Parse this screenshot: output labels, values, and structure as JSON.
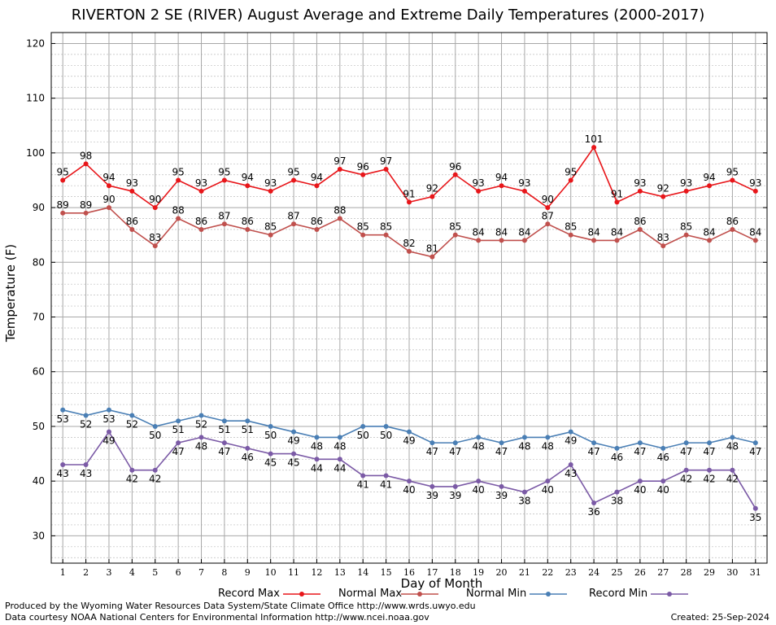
{
  "chart_data": {
    "type": "line",
    "title": "RIVERTON 2 SE (RIVER) August Average and Extreme Daily Temperatures (2000-2017)",
    "xlabel": "Day of Month",
    "ylabel": "Temperature (F)",
    "ylim": [
      25,
      122
    ],
    "yticks": [
      30,
      40,
      50,
      60,
      70,
      80,
      90,
      100,
      110,
      120
    ],
    "x": [
      1,
      2,
      3,
      4,
      5,
      6,
      7,
      8,
      9,
      10,
      11,
      12,
      13,
      14,
      15,
      16,
      17,
      18,
      19,
      20,
      21,
      22,
      23,
      24,
      25,
      26,
      27,
      28,
      29,
      30,
      31
    ],
    "grid": true,
    "legend_position": "bottom",
    "series": [
      {
        "name": "Record Max",
        "color": "#e8161a",
        "label_pos": "above",
        "values": [
          95,
          98,
          94,
          93,
          90,
          95,
          93,
          95,
          94,
          93,
          95,
          94,
          97,
          96,
          97,
          91,
          92,
          96,
          93,
          94,
          93,
          90,
          95,
          101,
          91,
          93,
          92,
          93,
          94,
          95,
          93
        ]
      },
      {
        "name": "Normal Max",
        "color": "#c0504d",
        "label_pos": "above",
        "values": [
          89,
          89,
          90,
          86,
          83,
          88,
          86,
          87,
          86,
          85,
          87,
          86,
          88,
          85,
          85,
          82,
          81,
          85,
          84,
          84,
          84,
          87,
          85,
          84,
          84,
          86,
          83,
          85,
          84,
          86,
          84
        ]
      },
      {
        "name": "Normal Min",
        "color": "#4a7fb5",
        "label_pos": "below",
        "values": [
          53,
          52,
          53,
          52,
          50,
          51,
          52,
          51,
          51,
          50,
          49,
          48,
          48,
          50,
          50,
          49,
          47,
          47,
          48,
          47,
          48,
          48,
          49,
          47,
          46,
          47,
          46,
          47,
          47,
          48,
          47
        ]
      },
      {
        "name": "Record Min",
        "color": "#7b5aa6",
        "label_pos": "below",
        "values": [
          43,
          43,
          49,
          42,
          42,
          47,
          48,
          47,
          46,
          45,
          45,
          44,
          44,
          41,
          41,
          40,
          39,
          39,
          40,
          39,
          38,
          40,
          43,
          36,
          38,
          40,
          40,
          42,
          42,
          42,
          35
        ]
      }
    ]
  },
  "footer": {
    "credit_1": "Produced by the Wyoming Water Resources Data System/State Climate Office http://www.wrds.uwyo.edu",
    "credit_2": "Data courtesy NOAA National Centers for Environmental Information http://www.ncei.noaa.gov",
    "created": "Created:  25-Sep-2024"
  }
}
